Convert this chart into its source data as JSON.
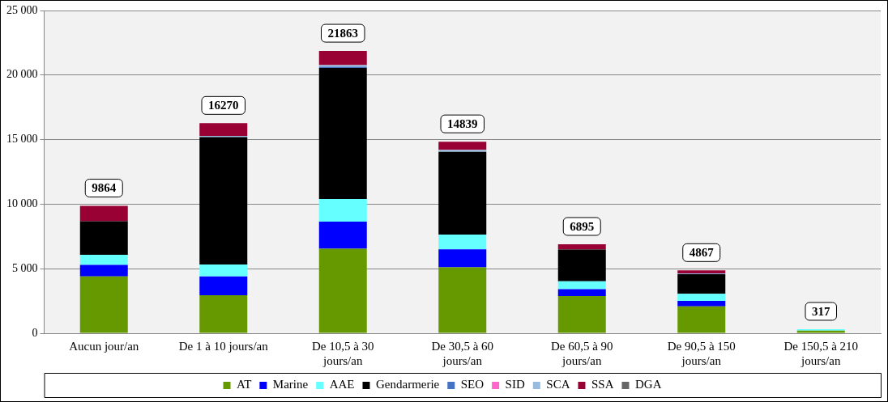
{
  "chart_data": {
    "type": "bar",
    "stacked": true,
    "categories": [
      "Aucun jour/an",
      "De 1 à 10 jours/an",
      "De 10,5 à 30 jours/an",
      "De 30,5 à 60 jours/an",
      "De 60,5 à 90 jours/an",
      "De 90,5 à 150 jours/an",
      "De 150,5 à 210 jours/an"
    ],
    "series": [
      {
        "name": "AT",
        "color": "#669900",
        "values": [
          4400,
          2950,
          6550,
          5100,
          2880,
          2090,
          197
        ]
      },
      {
        "name": "Marine",
        "color": "#0000ff",
        "values": [
          900,
          1450,
          2100,
          1400,
          540,
          420,
          null
        ]
      },
      {
        "name": "AAE",
        "color": "#66ffff",
        "values": [
          780,
          930,
          1750,
          1150,
          600,
          540,
          120
        ]
      },
      {
        "name": "Gendarmerie",
        "color": "#000000",
        "values": [
          2600,
          9860,
          10150,
          6400,
          2470,
          1520,
          null
        ]
      },
      {
        "name": "SEO",
        "color": "#4472c4",
        "values": [
          0,
          0,
          100,
          0,
          0,
          0,
          0
        ]
      },
      {
        "name": "SID",
        "color": "#ff66cc",
        "values": [
          0,
          0,
          0,
          0,
          0,
          0,
          0
        ]
      },
      {
        "name": "SCA",
        "color": "#99bbdd",
        "values": [
          null,
          100,
          120,
          150,
          null,
          70,
          0
        ]
      },
      {
        "name": "SSA",
        "color": "#990033",
        "values": [
          1184,
          980,
          1093,
          639,
          405,
          227,
          0
        ]
      },
      {
        "name": "DGA",
        "color": "#666666",
        "values": [
          0,
          0,
          0,
          0,
          0,
          0,
          0
        ]
      }
    ],
    "totals": [
      "9864",
      "16270",
      "21863",
      "14839",
      "6895",
      "4867",
      "317"
    ],
    "ylim": [
      0,
      25000
    ],
    "yticks": [
      {
        "value": 0,
        "label": "0"
      },
      {
        "value": 5000,
        "label": "5 000"
      },
      {
        "value": 10000,
        "label": "10 000"
      },
      {
        "value": 15000,
        "label": "15 000"
      },
      {
        "value": 20000,
        "label": "20 000"
      },
      {
        "value": 25000,
        "label": "25 000"
      }
    ],
    "grid": "y",
    "legend": "bottom"
  }
}
